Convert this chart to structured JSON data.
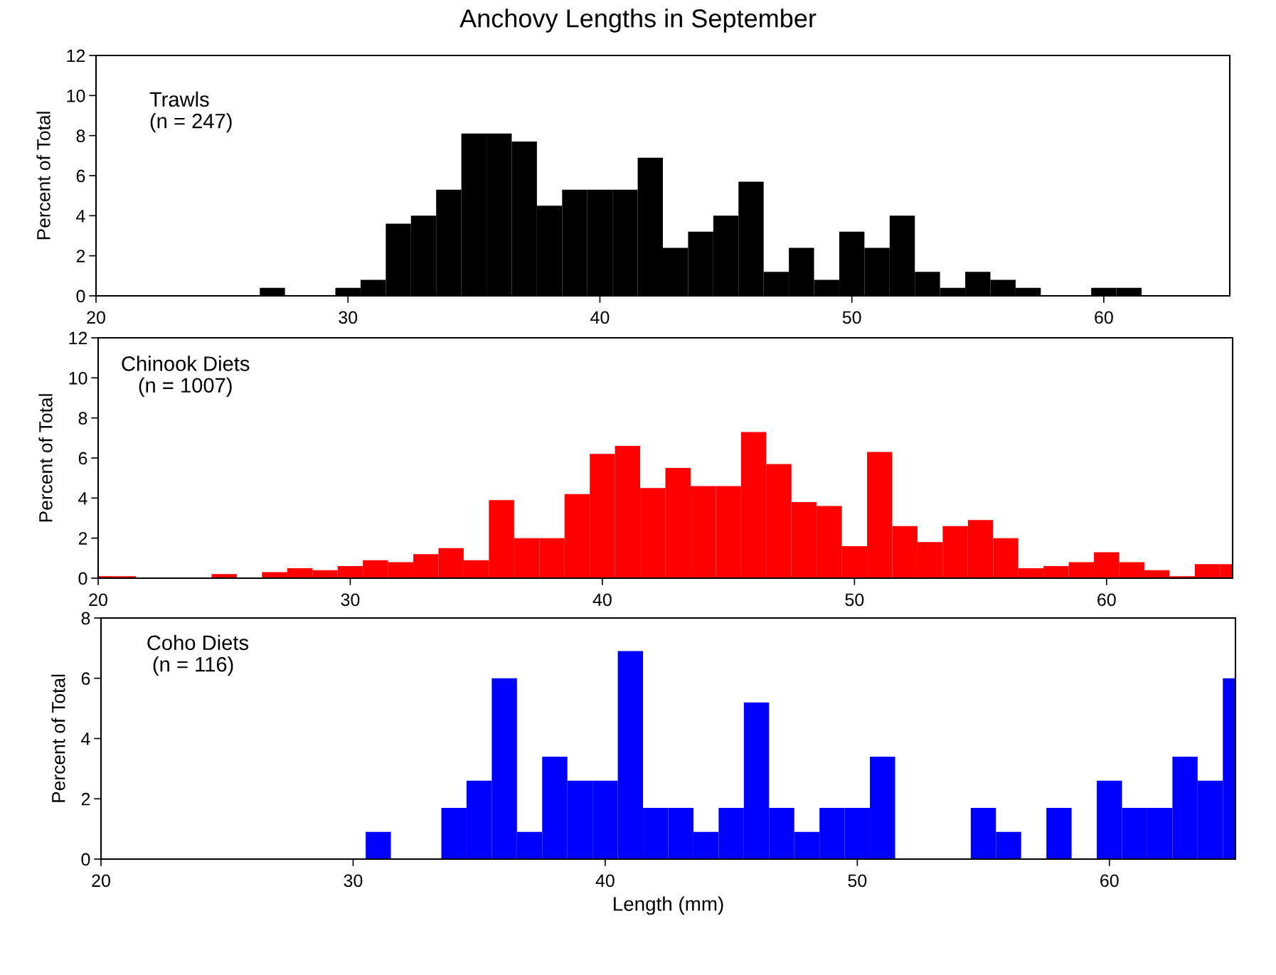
{
  "chart_data": [
    {
      "type": "histogram",
      "title": "Anchovy Lengths in September",
      "ylabel": "Percent of Total",
      "annotations": [
        "Trawls\n(n = 247)"
      ],
      "color": "#000000",
      "bins": [
        26.5,
        27.5,
        29.5,
        30.5,
        31.5,
        32.5,
        33.5,
        34.5,
        35.5,
        36.5,
        37.5,
        38.5,
        39.5,
        40.5,
        41.5,
        42.5,
        43.5,
        44.5,
        45.5,
        46.5,
        47.5,
        48.5,
        49.5,
        50.5,
        51.5,
        52.5,
        53.5,
        54.5,
        55.5,
        56.5,
        57.5,
        59.5,
        60.5,
        61.5
      ],
      "values": [
        0.4,
        0,
        0.4,
        0.8,
        3.6,
        4.0,
        5.3,
        8.1,
        8.1,
        7.7,
        4.5,
        5.3,
        5.3,
        5.3,
        6.9,
        2.4,
        3.2,
        4.0,
        5.7,
        1.2,
        2.4,
        0.8,
        3.2,
        2.4,
        4.0,
        1.2,
        0.4,
        1.2,
        0.8,
        0.4,
        0,
        0.4,
        0.4
      ],
      "xlim": [
        20,
        65
      ],
      "ylim": [
        0,
        12
      ],
      "xticks": [
        20,
        30,
        40,
        50,
        60
      ],
      "yticks": [
        0,
        2,
        4,
        6,
        8,
        10,
        12
      ],
      "grid": false
    },
    {
      "type": "histogram",
      "ylabel": "Percent of Total",
      "annotations": [
        "Chinook Diets\n(n = 1007)"
      ],
      "color": "#ff0000",
      "bins": [
        20,
        20.5,
        21.5,
        24.5,
        25.5,
        26.5,
        27.5,
        28.5,
        29.5,
        30.5,
        31.5,
        32.5,
        33.5,
        34.5,
        35.5,
        36.5,
        37.5,
        38.5,
        39.5,
        40.5,
        41.5,
        42.5,
        43.5,
        44.5,
        45.5,
        46.5,
        47.5,
        48.5,
        49.5,
        50.5,
        51.5,
        52.5,
        53.5,
        54.5,
        55.5,
        56.5,
        57.5,
        58.5,
        59.5,
        60.5,
        61.5,
        62.5,
        63.5,
        64.5,
        65
      ],
      "values": [
        0.1,
        0.1,
        0,
        0.2,
        0,
        0.3,
        0.5,
        0.4,
        0.6,
        0.9,
        0.8,
        1.2,
        1.5,
        0.9,
        3.9,
        2.0,
        2.0,
        4.2,
        6.2,
        6.6,
        4.5,
        5.5,
        4.6,
        4.6,
        7.3,
        5.7,
        3.8,
        3.6,
        1.6,
        6.3,
        2.6,
        1.8,
        2.6,
        2.9,
        2.0,
        0.5,
        0.6,
        0.8,
        1.3,
        0.8,
        0.4,
        0.1,
        0.7,
        0.7
      ],
      "xlim": [
        20,
        65
      ],
      "ylim": [
        0,
        12
      ],
      "xticks": [
        20,
        30,
        40,
        50,
        60
      ],
      "yticks": [
        0,
        2,
        4,
        6,
        8,
        10,
        12
      ],
      "grid": false
    },
    {
      "type": "histogram",
      "xlabel": "Length (mm)",
      "ylabel": "Percent of Total",
      "annotations": [
        "Coho Diets\n (n = 116)"
      ],
      "color": "#0000ff",
      "bins": [
        30.5,
        31.5,
        33.5,
        34.5,
        35.5,
        36.5,
        37.5,
        38.5,
        39.5,
        40.5,
        41.5,
        42.5,
        43.5,
        44.5,
        45.5,
        46.5,
        47.5,
        48.5,
        49.5,
        50.5,
        51.5,
        54.5,
        55.5,
        56.5,
        57.5,
        58.5,
        59.5,
        60.5,
        61.5,
        62.5,
        63.5,
        64.5,
        65
      ],
      "values": [
        0.9,
        0,
        1.7,
        2.6,
        6.0,
        0.9,
        3.4,
        2.6,
        2.6,
        6.9,
        1.7,
        1.7,
        0.9,
        1.7,
        5.2,
        1.7,
        0.9,
        1.7,
        1.7,
        3.4,
        0,
        1.7,
        0.9,
        0,
        1.7,
        0,
        2.6,
        1.7,
        1.7,
        3.4,
        2.6,
        6.0
      ],
      "xlim": [
        20,
        65
      ],
      "ylim": [
        0,
        8
      ],
      "xticks": [
        20,
        30,
        40,
        50,
        60
      ],
      "yticks": [
        0,
        2,
        4,
        6,
        8
      ],
      "grid": false
    }
  ]
}
